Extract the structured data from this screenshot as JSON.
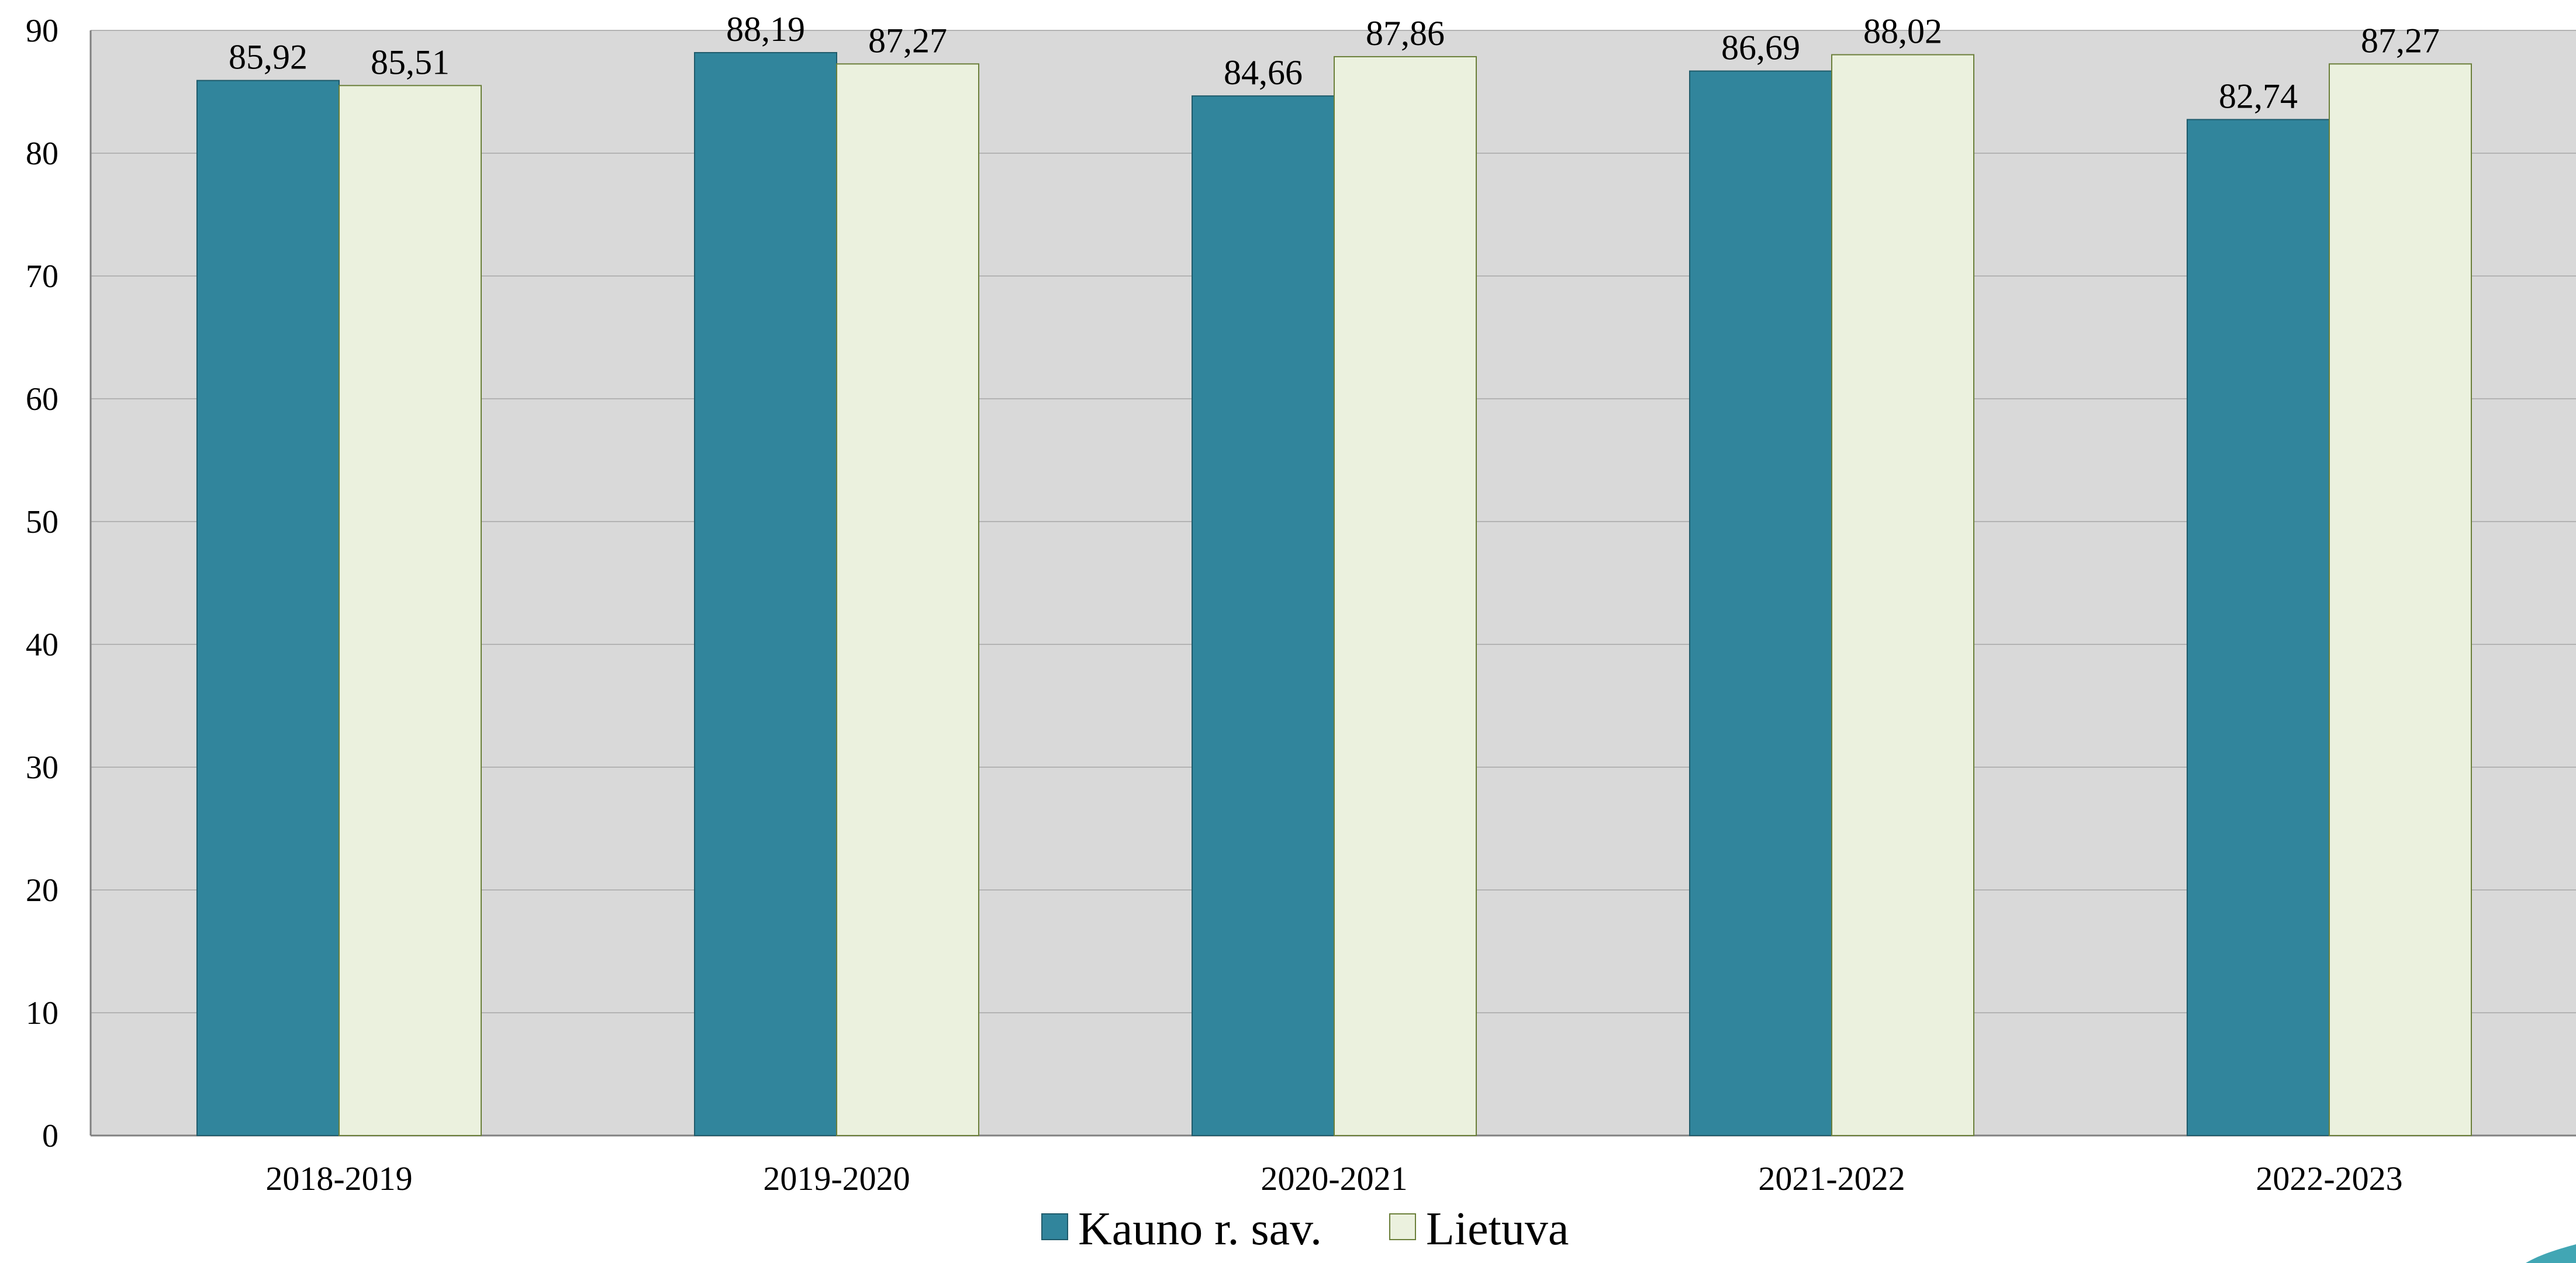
{
  "chart_data": {
    "type": "bar",
    "title": "",
    "xlabel": "",
    "ylabel": "",
    "categories": [
      "2018-2019",
      "2019-2020",
      "2020-2021",
      "2021-2022",
      "2022-2023"
    ],
    "series": [
      {
        "name": "Kauno r. sav.",
        "values": [
          85.92,
          88.19,
          84.66,
          86.69,
          82.74
        ],
        "labels": [
          "85,92",
          "88,19",
          "84,66",
          "86,69",
          "82,74"
        ],
        "color": "#31859c",
        "stroke": "#1f5b6b"
      },
      {
        "name": "Lietuva",
        "values": [
          85.51,
          87.27,
          87.86,
          88.02,
          87.27
        ],
        "labels": [
          "85,51",
          "87,27",
          "87,86",
          "88,02",
          "87,27"
        ],
        "color": "#ebf1de",
        "stroke": "#6b7f3a"
      }
    ],
    "ylim": [
      0,
      90
    ],
    "yticks": [
      0,
      10,
      20,
      30,
      40,
      50,
      60,
      70,
      80,
      90
    ],
    "grid": true,
    "legend": "bottom-center",
    "plot_background": "#d9d9d9",
    "gridline_color": "#b3b3b3"
  }
}
